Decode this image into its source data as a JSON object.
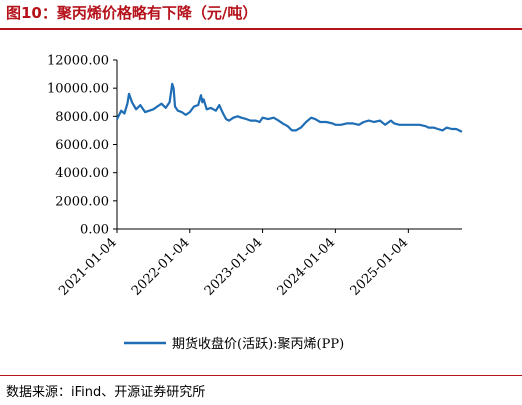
{
  "header": {
    "title": "图10：聚丙烯价格略有下降（元/吨）"
  },
  "footer": {
    "source": "数据来源：iFind、开源证券研究所"
  },
  "colors": {
    "title": "#b5121b",
    "series": "#1f6db5",
    "axis": "#000000"
  },
  "chart_data": {
    "type": "line",
    "title": "",
    "xlabel": "",
    "ylabel": "",
    "ylim": [
      0,
      12000
    ],
    "yticks": [
      "0.00",
      "2000.00",
      "4000.00",
      "6000.00",
      "8000.00",
      "10000.00",
      "12000.00"
    ],
    "ytick_values": [
      0,
      2000,
      4000,
      6000,
      8000,
      10000,
      12000
    ],
    "xticks": [
      "2021-01-04",
      "2022-01-04",
      "2023-01-04",
      "2024-01-04",
      "2025-01-04"
    ],
    "xlim": [
      "2021-01-04",
      "2025-09-30"
    ],
    "legend_position": "bottom",
    "grid": false,
    "series": [
      {
        "name": "期货收盘价(活跃):聚丙烯(PP)",
        "x": [
          "2021-01-04",
          "2021-01-25",
          "2021-02-10",
          "2021-02-25",
          "2021-03-05",
          "2021-03-20",
          "2021-04-10",
          "2021-05-01",
          "2021-05-25",
          "2021-06-15",
          "2021-07-05",
          "2021-07-25",
          "2021-08-15",
          "2021-09-05",
          "2021-09-25",
          "2021-10-08",
          "2021-10-15",
          "2021-10-22",
          "2021-11-05",
          "2021-11-25",
          "2021-12-15",
          "2022-01-04",
          "2022-01-25",
          "2022-02-15",
          "2022-03-01",
          "2022-03-08",
          "2022-03-15",
          "2022-03-30",
          "2022-04-20",
          "2022-05-15",
          "2022-06-01",
          "2022-06-10",
          "2022-06-20",
          "2022-07-05",
          "2022-07-20",
          "2022-08-10",
          "2022-09-01",
          "2022-09-20",
          "2022-10-15",
          "2022-11-05",
          "2022-11-30",
          "2022-12-20",
          "2023-01-04",
          "2023-02-01",
          "2023-03-01",
          "2023-03-25",
          "2023-04-15",
          "2023-05-10",
          "2023-05-31",
          "2023-06-20",
          "2023-07-15",
          "2023-08-10",
          "2023-09-05",
          "2023-09-25",
          "2023-10-20",
          "2023-11-20",
          "2023-12-20",
          "2024-01-04",
          "2024-02-01",
          "2024-03-01",
          "2024-04-01",
          "2024-05-01",
          "2024-05-25",
          "2024-06-20",
          "2024-07-15",
          "2024-08-15",
          "2024-09-10",
          "2024-10-08",
          "2024-10-25",
          "2024-11-20",
          "2024-12-20",
          "2025-01-04",
          "2025-02-01",
          "2025-03-01",
          "2025-04-01",
          "2025-04-15",
          "2025-05-10",
          "2025-06-01",
          "2025-06-25",
          "2025-07-15",
          "2025-08-10",
          "2025-09-01",
          "2025-09-30"
        ],
        "y": [
          7800,
          8400,
          8200,
          8900,
          9600,
          9000,
          8500,
          8800,
          8300,
          8400,
          8500,
          8700,
          8900,
          8600,
          9000,
          10300,
          10000,
          8700,
          8400,
          8300,
          8100,
          8300,
          8700,
          8800,
          9500,
          9000,
          9200,
          8500,
          8600,
          8400,
          8800,
          8500,
          8200,
          7800,
          7700,
          7900,
          8000,
          7900,
          7800,
          7700,
          7700,
          7600,
          7900,
          7800,
          7900,
          7700,
          7500,
          7300,
          7000,
          7000,
          7200,
          7600,
          7900,
          7800,
          7600,
          7600,
          7500,
          7400,
          7400,
          7500,
          7500,
          7400,
          7600,
          7700,
          7600,
          7700,
          7400,
          7700,
          7500,
          7400,
          7400,
          7400,
          7400,
          7400,
          7300,
          7200,
          7200,
          7100,
          7000,
          7200,
          7100,
          7100,
          6900
        ]
      }
    ]
  }
}
